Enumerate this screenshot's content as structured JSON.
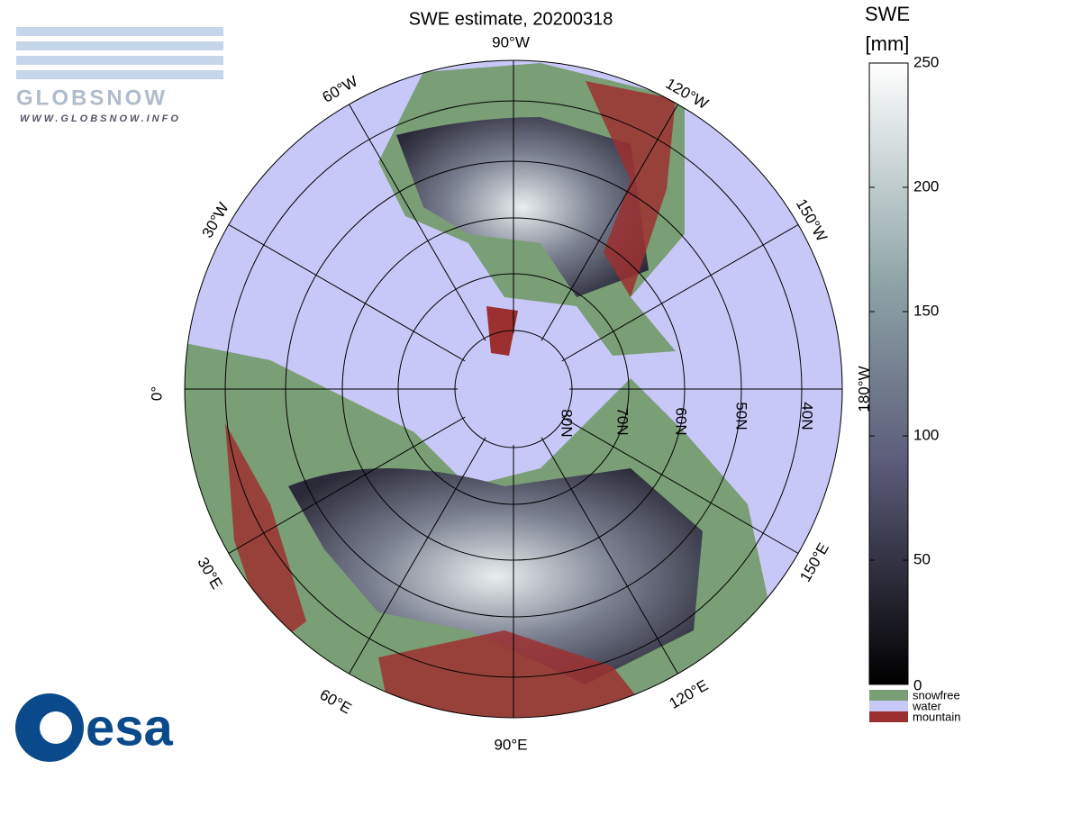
{
  "header": {
    "title": "SWE estimate, 20200318",
    "logo_top": "GLOBSNOW",
    "logo_url": "WWW.GLOBSNOW.INFO",
    "logo_bottom": "esa"
  },
  "map": {
    "longitude_labels": [
      "90°W",
      "120°W",
      "150°W",
      "180°W",
      "150°E",
      "120°E",
      "90°E",
      "60°E",
      "30°E",
      "0°",
      "30°W",
      "60°W"
    ],
    "latitude_labels": [
      "80N",
      "70N",
      "60N",
      "50N",
      "40N"
    ]
  },
  "colorbar": {
    "label": [
      "SWE",
      "[mm]"
    ],
    "lim": [
      0,
      250
    ],
    "ticks": [
      0,
      50,
      100,
      150,
      200,
      250
    ],
    "categories": [
      {
        "name": "snowfree",
        "color": "#7a9e76"
      },
      {
        "name": "water",
        "color": "#c8c8f8"
      },
      {
        "name": "mountain",
        "color": "#9c3030"
      }
    ]
  }
}
